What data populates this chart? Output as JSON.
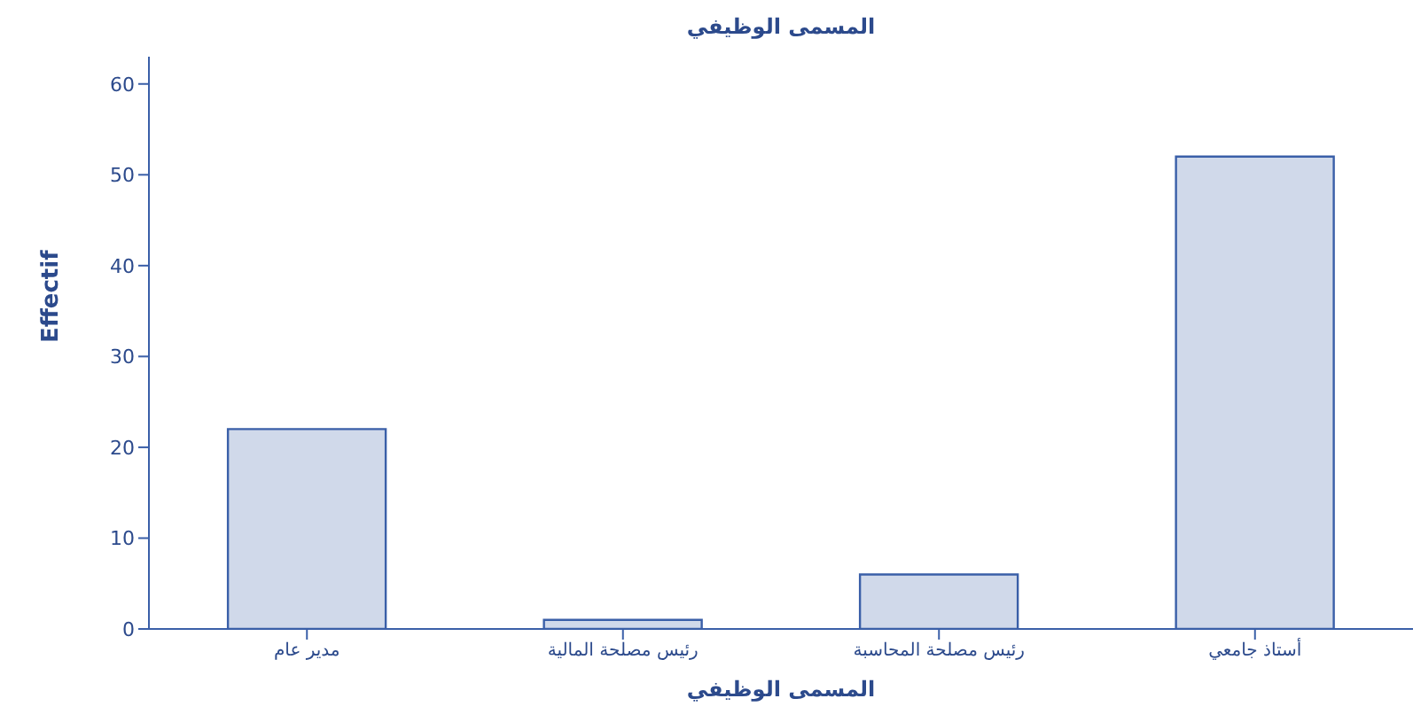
{
  "chart_data": {
    "type": "bar",
    "title": "المسمى الوظيفي",
    "xlabel": "المسمى الوظيفي",
    "ylabel": "Effectif",
    "categories": [
      "مدير عام",
      "رئيس مصلحة المالية",
      "رئيس مصلحة المحاسبة",
      "أستاذ جامعي"
    ],
    "values": [
      22,
      1,
      6,
      52
    ],
    "color": "#d0d9ea",
    "ylim": [
      0,
      63
    ],
    "yticks": [
      0,
      10,
      20,
      30,
      40,
      50,
      60
    ],
    "grid": false
  }
}
